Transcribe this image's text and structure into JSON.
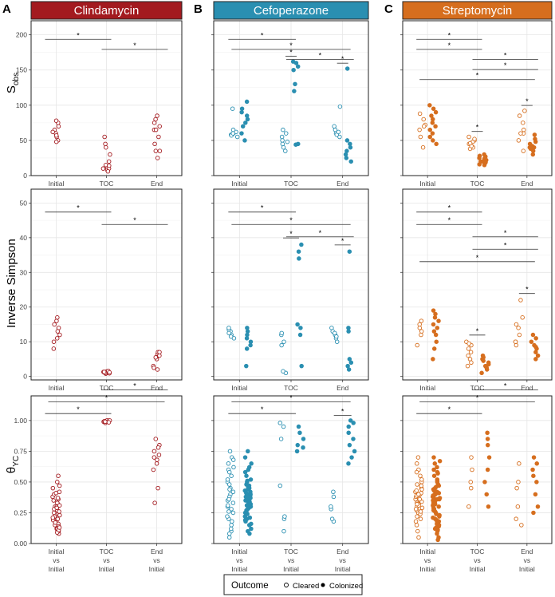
{
  "figure": {
    "panel_letters": [
      "A",
      "B",
      "C"
    ],
    "legend": {
      "title": "Outcome",
      "cleared_label": "Cleared",
      "colonized_label": "Colonized"
    }
  },
  "colors": {
    "clindamycin": "#a31a1f",
    "cefoperazone": "#2a8fb1",
    "streptomycin": "#d66e1e"
  },
  "columns": [
    {
      "title": "Clindamycin",
      "color": "#a31a1f"
    },
    {
      "title": "Cefoperazone",
      "color": "#2a8fb1"
    },
    {
      "title": "Streptomycin",
      "color": "#d66e1e"
    }
  ],
  "rows": [
    {
      "ylabel": "Sobs",
      "ylabel_main": "S",
      "ylabel_sub": "obs",
      "ylim": [
        0,
        220
      ],
      "ticks": [
        0,
        50,
        100,
        150,
        200
      ],
      "tick_labels": [
        "0",
        "50",
        "100",
        "150",
        "200"
      ],
      "categories": [
        "Initial",
        "TOC",
        "End"
      ]
    },
    {
      "ylabel": "Inverse Simpson",
      "ylabel_main": "Inverse Simpson",
      "ylabel_sub": "",
      "ylim": [
        -1,
        54
      ],
      "ticks": [
        0,
        10,
        20,
        30,
        40,
        50
      ],
      "tick_labels": [
        "0",
        "10",
        "20",
        "30",
        "40",
        "50"
      ],
      "categories": [
        "Initial",
        "TOC",
        "End"
      ]
    },
    {
      "ylabel": "θYC",
      "ylabel_main": "θ",
      "ylabel_sub": "YC",
      "ylim": [
        0,
        1.2
      ],
      "ticks": [
        0,
        0.25,
        0.5,
        0.75,
        1.0
      ],
      "tick_labels": [
        "0.00",
        "0.25",
        "0.50",
        "0.75",
        "1.00"
      ],
      "categories": [
        "Initial\nvs\nInitial",
        "TOC\nvs\nInitial",
        "End\nvs\nInitial"
      ]
    }
  ],
  "chart_data": [
    {
      "type": "scatter",
      "panel": "A",
      "antibiotic": "Clindamycin",
      "metric": "Sobs",
      "categories": [
        "Initial",
        "TOC",
        "End"
      ],
      "series": [
        {
          "name": "Cleared",
          "values": [
            [
              50,
              55,
              60,
              65,
              70,
              75,
              78,
              57,
              48,
              62
            ],
            [
              12,
              8,
              15,
              10,
              45,
              40,
              55,
              30,
              6,
              14,
              20,
              10
            ],
            [
              25,
              35,
              45,
              55,
              65,
              70,
              75,
              80,
              85,
              35,
              65
            ]
          ]
        },
        {
          "name": "Colonized",
          "values": [
            [],
            [],
            []
          ]
        }
      ],
      "significance": [
        [
          0,
          1
        ],
        [
          1,
          2
        ]
      ]
    },
    {
      "type": "scatter",
      "panel": "B",
      "antibiotic": "Cefoperazone",
      "metric": "Sobs",
      "categories": [
        "Initial",
        "TOC",
        "End"
      ],
      "series": [
        {
          "name": "Cleared",
          "values": [
            [
              55,
              58,
              60,
              62,
              65,
              95,
              57,
              60
            ],
            [
              35,
              40,
              45,
              50,
              55,
              60,
              65,
              48
            ],
            [
              55,
              60,
              65,
              70,
              98,
              58,
              62
            ]
          ]
        },
        {
          "name": "Colonized",
          "values": [
            [
              50,
              60,
              70,
              75,
              80,
              85,
              90,
              95,
              105
            ],
            [
              45,
              130,
              150,
              155,
              160,
              162,
              120,
              44
            ],
            [
              20,
              30,
              35,
              40,
              45,
              50,
              152,
              25
            ]
          ]
        }
      ],
      "significance": [
        [
          1,
          1
        ],
        [
          2,
          2
        ],
        [
          0,
          1
        ],
        [
          0,
          2
        ],
        [
          1,
          2
        ]
      ]
    },
    {
      "type": "scatter",
      "panel": "C",
      "antibiotic": "Streptomycin",
      "metric": "Sobs",
      "categories": [
        "Initial",
        "TOC",
        "End"
      ],
      "series": [
        {
          "name": "Cleared",
          "values": [
            [
              40,
              55,
              65,
              72,
              80,
              88,
              70
            ],
            [
              40,
              45,
              50,
              55,
              48,
              38,
              52,
              42,
              46
            ],
            [
              35,
              50,
              60,
              65,
              75,
              85,
              92,
              60
            ]
          ]
        },
        {
          "name": "Colonized",
          "values": [
            [
              45,
              55,
              60,
              65,
              70,
              75,
              80,
              85,
              90,
              95,
              100,
              50
            ],
            [
              15,
              18,
              20,
              22,
              25,
              28,
              30,
              20,
              16,
              24,
              27,
              19
            ],
            [
              30,
              35,
              38,
              40,
              42,
              45,
              48,
              52,
              58,
              40
            ]
          ]
        }
      ],
      "significance": [
        [
          1,
          1
        ],
        [
          2,
          2
        ],
        [
          0,
          1
        ],
        [
          0,
          1
        ],
        [
          1,
          2
        ],
        [
          1,
          2
        ],
        [
          0,
          2
        ]
      ]
    },
    {
      "type": "scatter",
      "panel": "A",
      "antibiotic": "Clindamycin",
      "metric": "Inverse Simpson",
      "categories": [
        "Initial",
        "TOC",
        "End"
      ],
      "series": [
        {
          "name": "Cleared",
          "values": [
            [
              8,
              10,
              12,
              13,
              14,
              15,
              16,
              17,
              11
            ],
            [
              1,
              1.2,
              1.5,
              0.8,
              1.1,
              1.3,
              1.4,
              0.9,
              1.6,
              1,
              1.2,
              1.3
            ],
            [
              2,
              3,
              5,
              6,
              6.5,
              7,
              7,
              6,
              2.5,
              5.5
            ]
          ]
        },
        {
          "name": "Colonized",
          "values": [
            [],
            [],
            []
          ]
        }
      ],
      "significance": [
        [
          0,
          1
        ],
        [
          1,
          2
        ]
      ]
    },
    {
      "type": "scatter",
      "panel": "B",
      "antibiotic": "Cefoperazone",
      "metric": "Inverse Simpson",
      "categories": [
        "Initial",
        "TOC",
        "End"
      ],
      "series": [
        {
          "name": "Cleared",
          "values": [
            [
              11,
              12,
              13,
              13.5,
              12.5,
              11.5,
              14
            ],
            [
              1,
              1.5,
              10,
              12,
              12.5,
              9
            ],
            [
              10,
              11,
              12,
              13,
              14,
              11.5,
              12.5
            ]
          ]
        },
        {
          "name": "Colonized",
          "values": [
            [
              3,
              8,
              10,
              11,
              12,
              13,
              14,
              9
            ],
            [
              3,
              12,
              14,
              15,
              34,
              36,
              38
            ],
            [
              2,
              3,
              4,
              5,
              13,
              14,
              36
            ]
          ]
        }
      ],
      "significance": [
        [
          1,
          1
        ],
        [
          2,
          2
        ],
        [
          0,
          1
        ],
        [
          0,
          2
        ],
        [
          1,
          2
        ]
      ]
    },
    {
      "type": "scatter",
      "panel": "C",
      "antibiotic": "Streptomycin",
      "metric": "Inverse Simpson",
      "categories": [
        "Initial",
        "TOC",
        "End"
      ],
      "series": [
        {
          "name": "Cleared",
          "values": [
            [
              9,
              12,
              13,
              15,
              16,
              14
            ],
            [
              3,
              5,
              6,
              8,
              9,
              10,
              7,
              4,
              9.5
            ],
            [
              9,
              10,
              12,
              14,
              15,
              17,
              22,
              10
            ]
          ]
        },
        {
          "name": "Colonized",
          "values": [
            [
              5,
              8,
              10,
              12,
              13,
              14,
              15,
              16,
              17,
              18,
              19
            ],
            [
              1,
              2,
              3,
              4,
              5,
              6,
              3.5,
              4.5,
              2.5,
              5.5
            ],
            [
              5,
              6,
              7,
              8,
              9,
              10,
              11,
              12,
              8.5
            ]
          ]
        }
      ],
      "significance": [
        [
          1,
          1
        ],
        [
          2,
          2
        ],
        [
          0,
          1
        ],
        [
          0,
          1
        ],
        [
          1,
          2
        ],
        [
          1,
          2
        ],
        [
          0,
          2
        ]
      ]
    },
    {
      "type": "scatter",
      "panel": "A",
      "antibiotic": "Clindamycin",
      "metric": "θYC",
      "categories": [
        "Initial vs Initial",
        "TOC vs Initial",
        "End vs Initial"
      ],
      "series": [
        {
          "name": "Cleared",
          "values": [
            [
              0.08,
              0.1,
              0.12,
              0.15,
              0.18,
              0.2,
              0.22,
              0.25,
              0.27,
              0.3,
              0.32,
              0.35,
              0.38,
              0.4,
              0.42,
              0.45,
              0.5,
              0.55,
              0.12,
              0.16,
              0.2,
              0.24,
              0.28,
              0.3,
              0.33,
              0.36,
              0.19,
              0.21,
              0.23,
              0.26,
              0.29,
              0.31,
              0.14,
              0.17,
              0.09,
              0.11,
              0.13,
              0.37,
              0.41,
              0.47
            ],
            [
              0.99,
              1.0,
              0.99,
              1.0,
              0.995,
              0.98,
              0.99,
              1.0,
              0.99,
              0.985
            ],
            [
              0.33,
              0.45,
              0.6,
              0.65,
              0.7,
              0.72,
              0.75,
              0.8,
              0.85,
              0.78,
              0.68
            ]
          ]
        },
        {
          "name": "Colonized",
          "values": [
            [],
            [],
            []
          ]
        }
      ],
      "significance": [
        [
          0,
          1
        ],
        [
          0,
          2
        ],
        [
          1,
          2
        ]
      ]
    },
    {
      "type": "scatter",
      "panel": "B",
      "antibiotic": "Cefoperazone",
      "metric": "θYC",
      "categories": [
        "Initial vs Initial",
        "TOC vs Initial",
        "End vs Initial"
      ],
      "series": [
        {
          "name": "Cleared",
          "values": [
            [
              0.05,
              0.1,
              0.15,
              0.2,
              0.25,
              0.3,
              0.35,
              0.4,
              0.45,
              0.5,
              0.55,
              0.6,
              0.65,
              0.7,
              0.75,
              0.22,
              0.28,
              0.33,
              0.38,
              0.12,
              0.18,
              0.42,
              0.48,
              0.08,
              0.26,
              0.31,
              0.36,
              0.44,
              0.52,
              0.58,
              0.62,
              0.68
            ],
            [
              0.1,
              0.2,
              0.22,
              0.47,
              0.85,
              0.95,
              0.98
            ],
            [
              0.18,
              0.2,
              0.28,
              0.3,
              0.38,
              0.42
            ]
          ]
        },
        {
          "name": "Colonized",
          "values": [
            [
              0.08,
              0.1,
              0.12,
              0.15,
              0.18,
              0.2,
              0.22,
              0.25,
              0.27,
              0.3,
              0.32,
              0.35,
              0.38,
              0.4,
              0.42,
              0.45,
              0.48,
              0.5,
              0.52,
              0.55,
              0.58,
              0.6,
              0.62,
              0.65,
              0.7,
              0.75,
              0.28,
              0.3,
              0.33,
              0.35,
              0.37,
              0.4,
              0.43,
              0.46,
              0.29,
              0.31,
              0.34,
              0.36,
              0.39,
              0.41,
              0.44,
              0.24,
              0.26,
              0.32,
              0.38,
              0.47,
              0.51,
              0.16,
              0.19,
              0.21
            ],
            [
              0.75,
              0.78,
              0.8,
              0.85,
              0.9,
              0.95
            ],
            [
              0.65,
              0.7,
              0.75,
              0.8,
              0.85,
              0.9,
              0.95,
              0.98,
              1.0
            ]
          ]
        }
      ],
      "significance": [
        [
          0,
          1
        ],
        [
          0,
          2
        ],
        [
          2,
          2
        ]
      ]
    },
    {
      "type": "scatter",
      "panel": "C",
      "antibiotic": "Streptomycin",
      "metric": "θYC",
      "categories": [
        "Initial vs Initial",
        "TOC vs Initial",
        "End vs Initial"
      ],
      "series": [
        {
          "name": "Cleared",
          "values": [
            [
              0.05,
              0.1,
              0.15,
              0.2,
              0.22,
              0.25,
              0.27,
              0.3,
              0.32,
              0.35,
              0.37,
              0.4,
              0.42,
              0.45,
              0.48,
              0.5,
              0.55,
              0.6,
              0.65,
              0.7,
              0.28,
              0.31,
              0.33,
              0.36,
              0.38,
              0.41,
              0.43,
              0.29,
              0.34,
              0.39,
              0.44,
              0.18,
              0.24,
              0.47,
              0.52,
              0.58,
              0.26,
              0.32,
              0.36,
              0.4
            ],
            [
              0.3,
              0.45,
              0.5,
              0.6,
              0.7
            ],
            [
              0.15,
              0.2,
              0.3,
              0.45,
              0.5,
              0.65
            ]
          ]
        },
        {
          "name": "Colonized",
          "values": [
            [
              0.05,
              0.08,
              0.1,
              0.12,
              0.15,
              0.18,
              0.2,
              0.22,
              0.25,
              0.27,
              0.3,
              0.32,
              0.35,
              0.37,
              0.4,
              0.42,
              0.45,
              0.48,
              0.5,
              0.55,
              0.6,
              0.65,
              0.7,
              0.28,
              0.31,
              0.33,
              0.36,
              0.38,
              0.41,
              0.43,
              0.29,
              0.34,
              0.39,
              0.44,
              0.18,
              0.24,
              0.47,
              0.52,
              0.58,
              0.26,
              0.32,
              0.36,
              0.4,
              0.14,
              0.16,
              0.21,
              0.23,
              0.46,
              0.51,
              0.57,
              0.62,
              0.67,
              0.03,
              0.11,
              0.13,
              0.19,
              0.35,
              0.37
            ],
            [
              0.3,
              0.4,
              0.5,
              0.6,
              0.7,
              0.8,
              0.85,
              0.9
            ],
            [
              0.25,
              0.3,
              0.4,
              0.5,
              0.55,
              0.6,
              0.65,
              0.7
            ]
          ]
        }
      ],
      "significance": [
        [
          0,
          1
        ],
        [
          0,
          2
        ],
        [
          1,
          2
        ]
      ]
    }
  ]
}
